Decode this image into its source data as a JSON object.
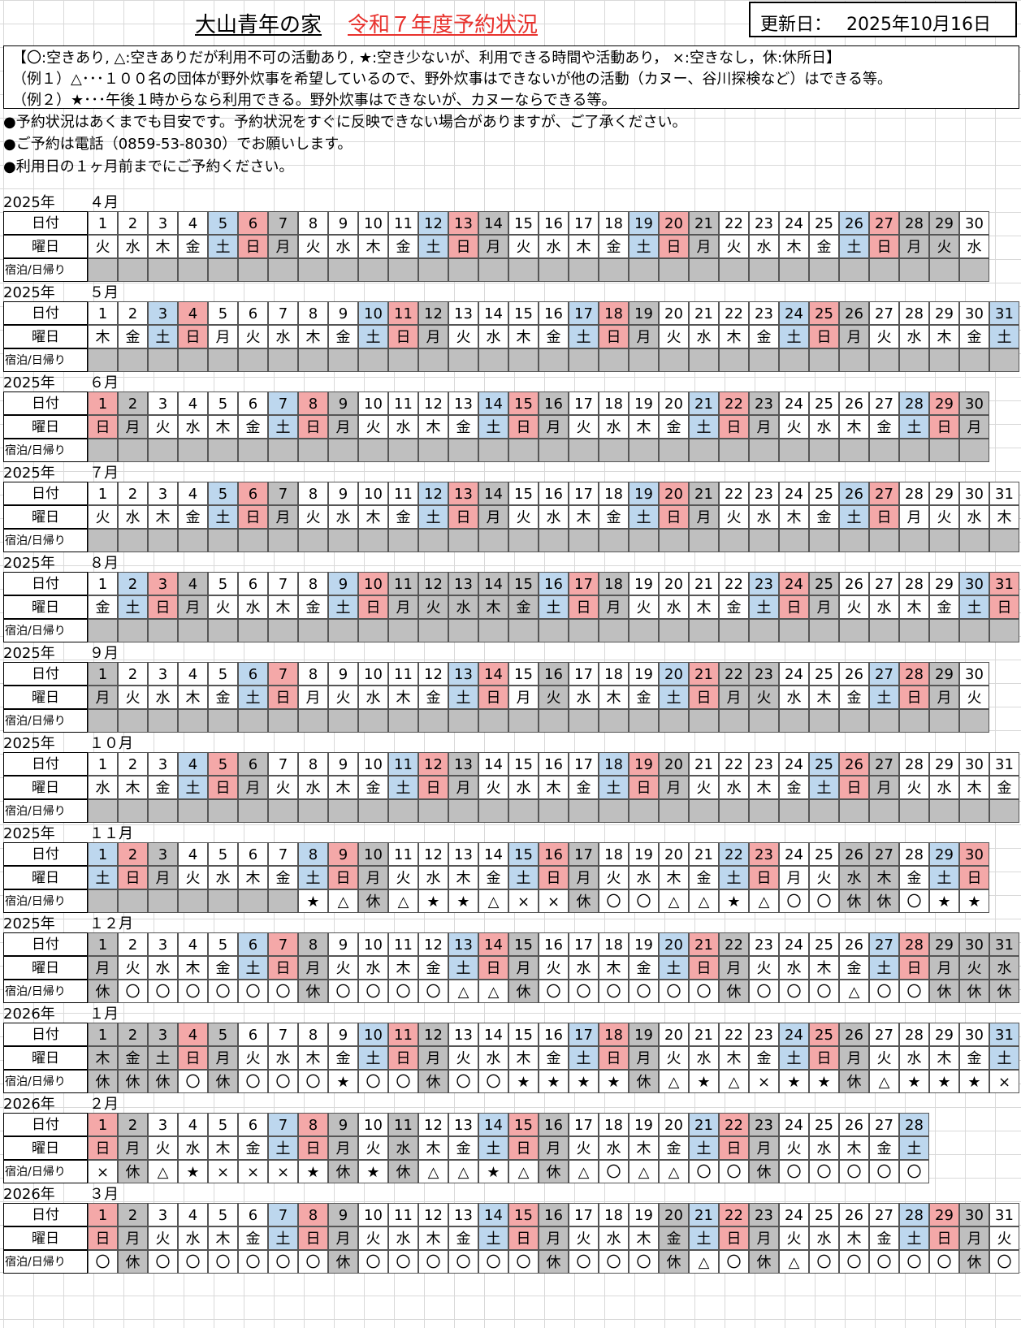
{
  "header": {
    "title": "大山青年の家",
    "subtitle": "令和７年度予約状況",
    "updated_label": "更新日：",
    "updated_value": "2025年10月16日"
  },
  "legend": {
    "line1": "【〇:空きあり, △:空きありだが利用不可の活動あり, ★:空き少ないが、利用できる時間や活動あり，  ×:空きなし，休:休所日】",
    "line2": "（例１）△･･･１００名の団体が野外炊事を希望しているので、野外炊事はできないが他の活動（カヌー、谷川探検など）はできる等。",
    "line3": "（例２）★･･･午後１時からなら利用できる。野外炊事はできないが、カヌーならできる等。"
  },
  "notes": [
    "●予約状況はあくまでも目安です。予約状況をすぐに反映できない場合がありますが、ご了承ください。",
    "●ご予約は電話（0859-53-8030）でお願いします。",
    "●利用日の１ヶ月前までにご予約ください。"
  ],
  "row_labels": {
    "date": "日付",
    "weekday": "曜日",
    "status": "宿泊/日帰り"
  },
  "colors": {
    "saturday": "#bdd7ee",
    "sunday": "#f4a8a8",
    "closed": "#bfbfbf",
    "title_red": "#e8322d"
  },
  "months": [
    {
      "year": "2025年",
      "month": "４月",
      "first": "火",
      "days": 30,
      "sat": [
        5,
        12,
        19,
        26
      ],
      "sun": [
        6,
        13,
        20,
        27
      ],
      "hol": [
        7,
        14,
        21,
        28,
        29
      ],
      "status": []
    },
    {
      "year": "2025年",
      "month": "５月",
      "first": "木",
      "days": 31,
      "sat": [
        3,
        10,
        17,
        24,
        31
      ],
      "sun": [
        4,
        11,
        18,
        25
      ],
      "hol": [
        12,
        19,
        26
      ],
      "status": []
    },
    {
      "year": "2025年",
      "month": "６月",
      "first": "日",
      "days": 30,
      "sat": [
        7,
        14,
        21,
        28
      ],
      "sun": [
        1,
        8,
        15,
        22,
        29
      ],
      "hol": [
        2,
        9,
        16,
        23,
        30
      ],
      "status": []
    },
    {
      "year": "2025年",
      "month": "７月",
      "first": "火",
      "days": 31,
      "sat": [
        5,
        12,
        19,
        26
      ],
      "sun": [
        6,
        13,
        20,
        27
      ],
      "hol": [
        7,
        14,
        21
      ],
      "status": []
    },
    {
      "year": "2025年",
      "month": "８月",
      "first": "金",
      "days": 31,
      "sat": [
        2,
        9,
        16,
        23,
        30
      ],
      "sun": [
        3,
        10,
        17,
        24,
        31
      ],
      "hol": [
        4,
        11,
        12,
        13,
        14,
        15,
        18,
        25
      ],
      "status": []
    },
    {
      "year": "2025年",
      "month": "９月",
      "first": "月",
      "days": 30,
      "sat": [
        6,
        13,
        20,
        27
      ],
      "sun": [
        7,
        14,
        21,
        28
      ],
      "hol": [
        1,
        16,
        22,
        23,
        29
      ],
      "status": []
    },
    {
      "year": "2025年",
      "month": "１０月",
      "first": "水",
      "days": 31,
      "sat": [
        4,
        11,
        18,
        25
      ],
      "sun": [
        5,
        12,
        19,
        26
      ],
      "hol": [
        6,
        13,
        20,
        27
      ],
      "status": []
    },
    {
      "year": "2025年",
      "month": "１１月",
      "first": "土",
      "days": 30,
      "sat": [
        1,
        8,
        15,
        22,
        29
      ],
      "sun": [
        2,
        9,
        16,
        23,
        30
      ],
      "hol": [
        3,
        10,
        17,
        26,
        27
      ],
      "status": [
        "",
        "",
        "",
        "",
        "",
        "",
        "",
        "★",
        "△",
        "休",
        "△",
        "★",
        "★",
        "△",
        "×",
        "×",
        "休",
        "〇",
        "〇",
        "△",
        "△",
        "★",
        "△",
        "〇",
        "〇",
        "休",
        "休",
        "〇",
        "★",
        "★"
      ]
    },
    {
      "year": "2025年",
      "month": "１２月",
      "first": "月",
      "days": 31,
      "sat": [
        6,
        13,
        20,
        27
      ],
      "sun": [
        7,
        14,
        21,
        28
      ],
      "hol": [
        1,
        8,
        15,
        22,
        29,
        30,
        31
      ],
      "status": [
        "休",
        "〇",
        "〇",
        "〇",
        "〇",
        "〇",
        "〇",
        "休",
        "〇",
        "〇",
        "〇",
        "〇",
        "△",
        "△",
        "休",
        "〇",
        "〇",
        "〇",
        "〇",
        "〇",
        "〇",
        "休",
        "〇",
        "〇",
        "〇",
        "△",
        "〇",
        "〇",
        "休",
        "休",
        "休"
      ]
    },
    {
      "year": "2026年",
      "month": "１月",
      "first": "木",
      "days": 31,
      "sat": [
        10,
        17,
        24,
        31
      ],
      "sun": [
        4,
        11,
        18,
        25
      ],
      "hol": [
        1,
        2,
        3,
        5,
        12,
        19,
        26
      ],
      "status": [
        "休",
        "休",
        "休",
        "〇",
        "休",
        "〇",
        "〇",
        "〇",
        "★",
        "〇",
        "〇",
        "休",
        "〇",
        "〇",
        "★",
        "★",
        "★",
        "★",
        "休",
        "△",
        "★",
        "△",
        "×",
        "★",
        "★",
        "休",
        "△",
        "★",
        "★",
        "★",
        "×"
      ]
    },
    {
      "year": "2026年",
      "month": "２月",
      "first": "日",
      "days": 28,
      "sat": [
        7,
        14,
        21,
        28
      ],
      "sun": [
        1,
        8,
        15,
        22
      ],
      "hol": [
        2,
        9,
        11,
        16,
        23
      ],
      "status": [
        "×",
        "休",
        "△",
        "★",
        "×",
        "×",
        "×",
        "★",
        "休",
        "★",
        "休",
        "△",
        "△",
        "★",
        "△",
        "休",
        "△",
        "〇",
        "△",
        "△",
        "〇",
        "〇",
        "休",
        "〇",
        "〇",
        "〇",
        "〇",
        "〇"
      ]
    },
    {
      "year": "2026年",
      "month": "３月",
      "first": "日",
      "days": 31,
      "sat": [
        7,
        14,
        21,
        28
      ],
      "sun": [
        1,
        8,
        15,
        22,
        29
      ],
      "hol": [
        2,
        9,
        16,
        20,
        23,
        30
      ],
      "status": [
        "〇",
        "休",
        "〇",
        "〇",
        "〇",
        "〇",
        "〇",
        "〇",
        "休",
        "〇",
        "〇",
        "〇",
        "〇",
        "〇",
        "〇",
        "休",
        "〇",
        "〇",
        "〇",
        "休",
        "△",
        "〇",
        "休",
        "△",
        "〇",
        "〇",
        "〇",
        "〇",
        "〇",
        "休",
        "〇"
      ]
    }
  ]
}
